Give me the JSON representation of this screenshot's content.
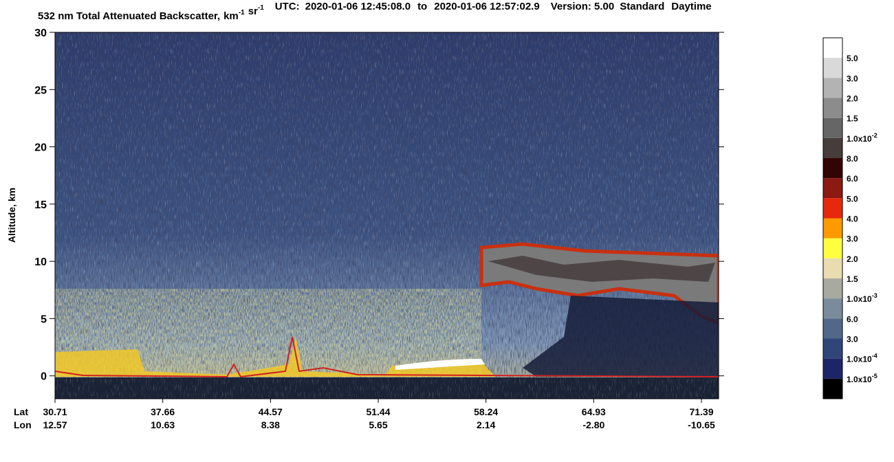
{
  "chart_data": {
    "type": "curtain",
    "title": "532 nm Total Attenuated Backscatter,",
    "units": [
      {
        "base": "km",
        "exp": "-1"
      },
      {
        "base": "sr",
        "exp": "-1"
      }
    ],
    "utc_label": "UTC:",
    "start_time": "2020-01-06 12:45:08.0",
    "to": "to",
    "end_time": "2020-01-06 12:57:02.9",
    "version": "Version: 5.00",
    "product": "Standard",
    "mode": "Daytime",
    "ylabel": "Altitude, km",
    "ylim": [
      -2,
      30
    ],
    "yticks": [
      0,
      5,
      10,
      15,
      20,
      25,
      30
    ],
    "x_rows": [
      "Lat",
      "Lon"
    ],
    "lat": [
      "30.71",
      "37.66",
      "44.57",
      "51.44",
      "58.24",
      "64.93",
      "71.39"
    ],
    "lon": [
      "12.57",
      "10.63",
      "8.38",
      "5.65",
      "2.14",
      "-2.80",
      "-10.65"
    ],
    "colorbar": {
      "colors": [
        "#ffffff",
        "#d9d9d9",
        "#b3b3b3",
        "#8c8c8c",
        "#666666",
        "#463c3a",
        "#320404",
        "#8a1a12",
        "#e8280c",
        "#ff9a00",
        "#ffff40",
        "#e8dcb0",
        "#a8aaa0",
        "#7a8c9c",
        "#52688a",
        "#30467a",
        "#1e2468",
        "#000000"
      ],
      "labels": [
        {
          "text": "5.0"
        },
        {
          "text": "3.0"
        },
        {
          "text": "2.0"
        },
        {
          "text": "1.5"
        },
        {
          "text": "1.0x10",
          "exp": "-2"
        },
        {
          "text": "8.0"
        },
        {
          "text": "6.0"
        },
        {
          "text": "5.0"
        },
        {
          "text": "4.0"
        },
        {
          "text": "3.0"
        },
        {
          "text": "2.0"
        },
        {
          "text": "1.5"
        },
        {
          "text": "1.0x10",
          "exp": "-3"
        },
        {
          "text": "6.0"
        },
        {
          "text": "3.0"
        },
        {
          "text": "1.0x10",
          "exp": "-4"
        },
        {
          "text": "1.0x10",
          "exp": "-5"
        }
      ]
    }
  }
}
